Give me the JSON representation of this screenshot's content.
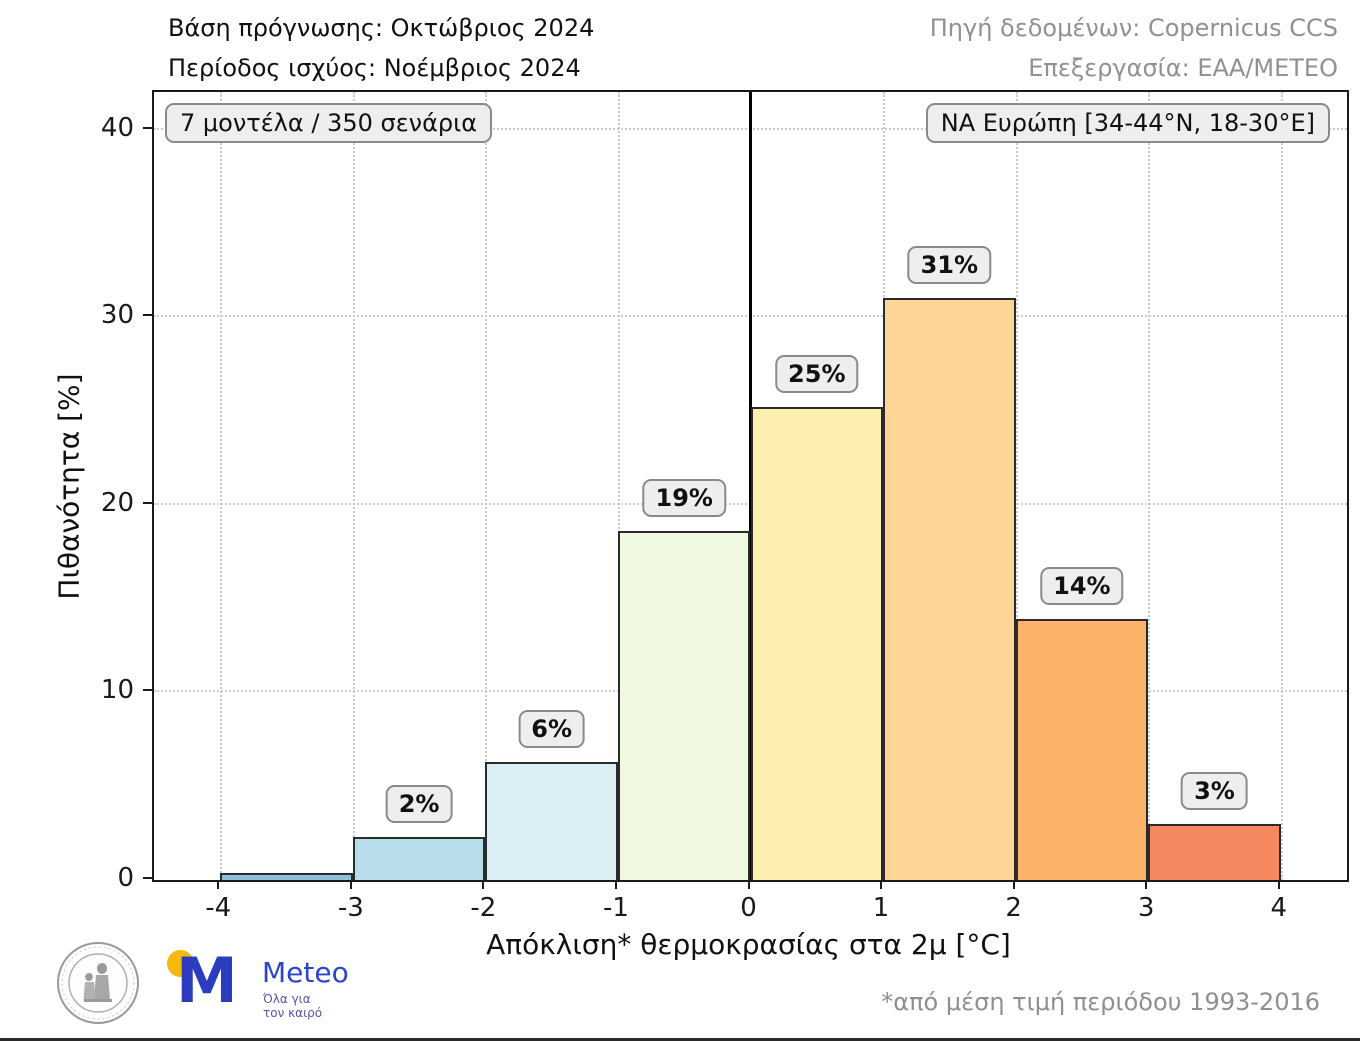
{
  "header": {
    "left_line1": "Βάση πρόγνωσης: Οκτώβριος 2024",
    "left_line2": "Περίοδος ισχύος: Νοέμβριος 2024",
    "right_line1": "Πηγή δεδομένων: Copernicus CCS",
    "right_line2": "Επεξεργασία: ΕΑΑ/ΜΕΤΕΟ"
  },
  "chart_data": {
    "type": "bar",
    "title": "",
    "xlabel": "Απόκλιση* θερμοκρασίας στα 2μ [°C]",
    "ylabel": "Πιθανότητα [%]",
    "xlim": [
      -4.5,
      4.5
    ],
    "ylim": [
      0,
      42
    ],
    "x_ticks": [
      -4,
      -3,
      -2,
      -1,
      0,
      1,
      2,
      3,
      4
    ],
    "y_ticks": [
      0,
      10,
      20,
      30,
      40
    ],
    "grid": "dotted",
    "zero_line_x": 0,
    "annotation_left": "7 μοντέλα / 350 σενάρια",
    "annotation_right": "ΝΑ Ευρώπη [34-44°N, 18-30°E]",
    "categories": [
      "[-4,-3]",
      "[-3,-2]",
      "[-2,-1]",
      "[-1,0]",
      "[0,1]",
      "[1,2]",
      "[2,3]",
      "[3,4]"
    ],
    "values": [
      0.4,
      2.3,
      6.3,
      18.6,
      25.2,
      31.0,
      13.9,
      3.0
    ],
    "bins": [
      {
        "x0": -4,
        "x1": -3,
        "value": 0.4,
        "label": null,
        "color": "#8fc0da"
      },
      {
        "x0": -3,
        "x1": -2,
        "value": 2.3,
        "label": "2%",
        "color": "#b7dcea"
      },
      {
        "x0": -2,
        "x1": -1,
        "value": 6.3,
        "label": "6%",
        "color": "#dbeef5"
      },
      {
        "x0": -1,
        "x1": 0,
        "value": 18.6,
        "label": "19%",
        "color": "#eff8e0"
      },
      {
        "x0": 0,
        "x1": 1,
        "value": 25.2,
        "label": "25%",
        "color": "#fdf0ae"
      },
      {
        "x0": 1,
        "x1": 2,
        "value": 31.0,
        "label": "31%",
        "color": "#fdd697"
      },
      {
        "x0": 2,
        "x1": 3,
        "value": 13.9,
        "label": "14%",
        "color": "#fab369"
      },
      {
        "x0": 3,
        "x1": 4,
        "value": 3.0,
        "label": "3%",
        "color": "#f5885e"
      }
    ]
  },
  "footer": {
    "note": "*από μέση τιμή περιόδου 1993-2016",
    "meteo_m": "M",
    "meteo_name": "Meteo",
    "meteo_tagline_line1": "Όλα για",
    "meteo_tagline_line2": "τον καιρό"
  },
  "colors": {
    "bar_edge": "#2b2b2b",
    "grid": "#cbcbcb",
    "header_right_text": "#919191",
    "label_box_bg": "#eeeeee",
    "label_box_border": "#8a8a8a",
    "meteo_blue": "#2b3cbe",
    "meteo_yellow": "#f5b80c",
    "meteo_purple": "#6152a6"
  }
}
